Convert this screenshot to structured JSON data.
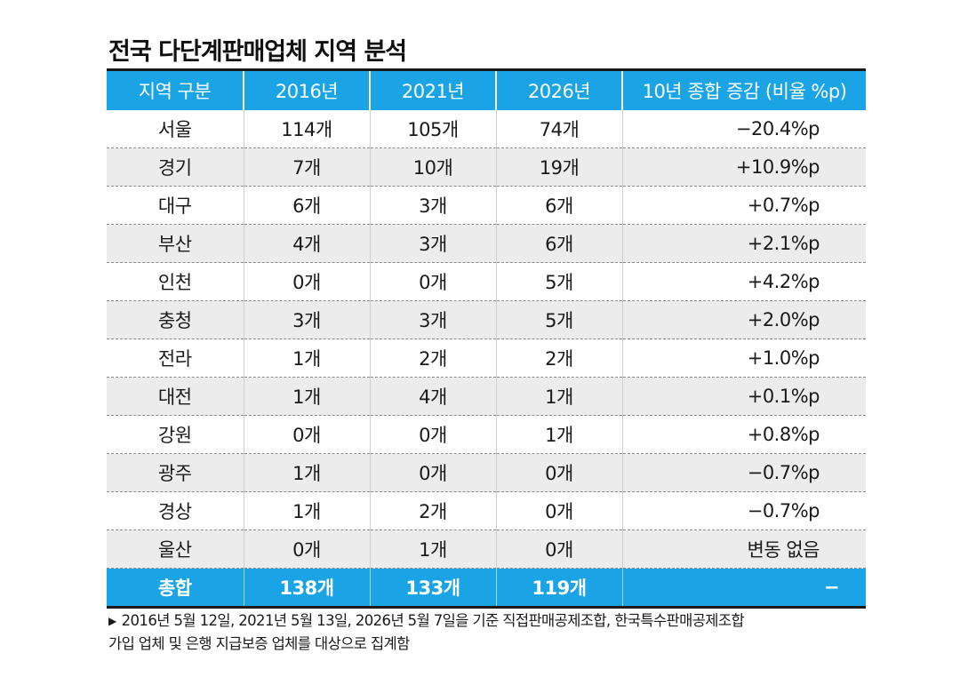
{
  "title": "전국 다단계판매업체 지역 분석",
  "table": {
    "headers": [
      "지역 구분",
      "2016년",
      "2021년",
      "2026년",
      "10년 종합 증감 (비율 %p)"
    ],
    "rows": [
      {
        "region": "서울",
        "y2016": "114개",
        "y2021": "105개",
        "y2026": "74개",
        "change": "−20.4%p"
      },
      {
        "region": "경기",
        "y2016": "7개",
        "y2021": "10개",
        "y2026": "19개",
        "change": "+10.9%p"
      },
      {
        "region": "대구",
        "y2016": "6개",
        "y2021": "3개",
        "y2026": "6개",
        "change": "+0.7%p"
      },
      {
        "region": "부산",
        "y2016": "4개",
        "y2021": "3개",
        "y2026": "6개",
        "change": "+2.1%p"
      },
      {
        "region": "인천",
        "y2016": "0개",
        "y2021": "0개",
        "y2026": "5개",
        "change": "+4.2%p"
      },
      {
        "region": "충청",
        "y2016": "3개",
        "y2021": "3개",
        "y2026": "5개",
        "change": "+2.0%p"
      },
      {
        "region": "전라",
        "y2016": "1개",
        "y2021": "2개",
        "y2026": "2개",
        "change": "+1.0%p"
      },
      {
        "region": "대전",
        "y2016": "1개",
        "y2021": "4개",
        "y2026": "1개",
        "change": "+0.1%p"
      },
      {
        "region": "강원",
        "y2016": "0개",
        "y2021": "0개",
        "y2026": "1개",
        "change": "+0.8%p"
      },
      {
        "region": "광주",
        "y2016": "1개",
        "y2021": "0개",
        "y2026": "0개",
        "change": "−0.7%p"
      },
      {
        "region": "경상",
        "y2016": "1개",
        "y2021": "2개",
        "y2026": "0개",
        "change": "−0.7%p"
      },
      {
        "region": "울산",
        "y2016": "0개",
        "y2021": "1개",
        "y2026": "0개",
        "change": "변동 없음"
      }
    ],
    "total": {
      "region": "총합",
      "y2016": "138개",
      "y2021": "133개",
      "y2026": "119개",
      "change": "−"
    }
  },
  "footnote": {
    "marker": "▶",
    "line1": "2016년 5월 12일, 2021년 5월 13일, 2026년 5월 7일을 기준 직접판매공제조합, 한국특수판매공제조합",
    "line2": "가입 업체 및 은행 지급보증 업체를 대상으로 집계함"
  },
  "colors": {
    "header_bg": "#1aa4e6",
    "alt_row_bg": "#ececec"
  }
}
